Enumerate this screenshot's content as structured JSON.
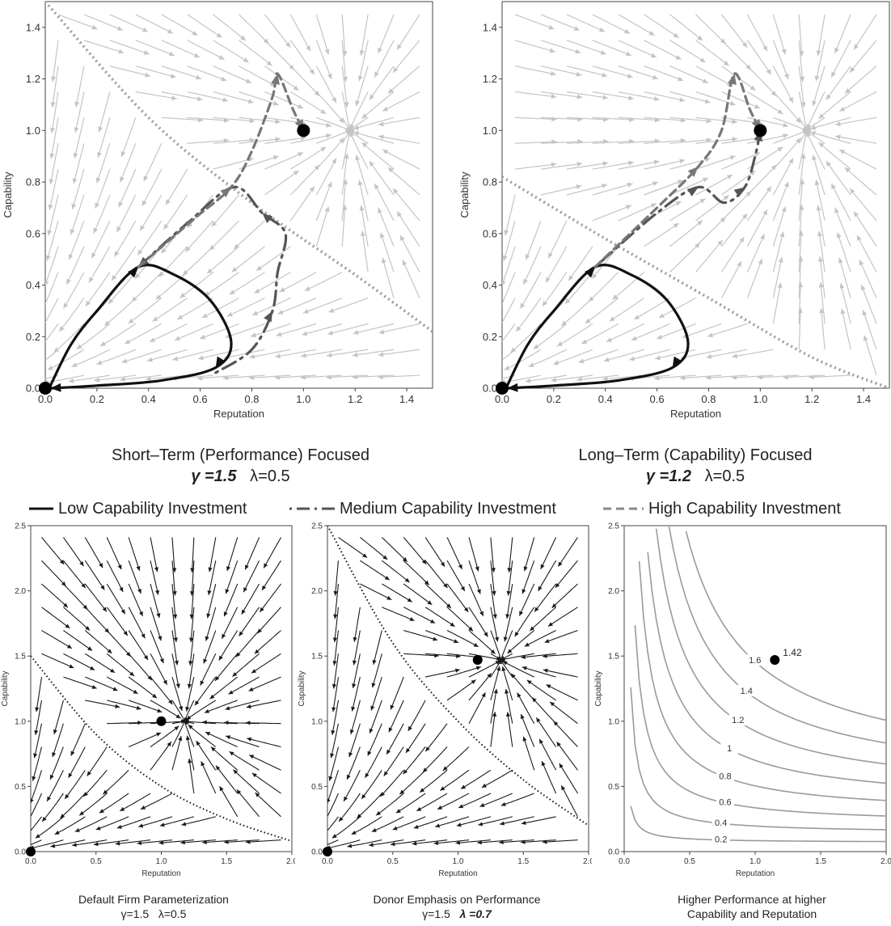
{
  "legend": {
    "low": "Low Capability Investment",
    "medium": "Medium Capability Investment",
    "high": "High Capability Investment"
  },
  "captions": {
    "top_left": {
      "title": "Short–Term (Performance) Focused",
      "gamma": "γ =1.5",
      "lambda": "λ=0.5"
    },
    "top_right": {
      "title": "Long–Term (Capability) Focused",
      "gamma": "γ =1.2",
      "lambda": "λ=0.5"
    },
    "bottom_left": {
      "title": "Default Firm Parameterization",
      "gamma": "γ=1.5",
      "lambda": "λ=0.5"
    },
    "bottom_middle": {
      "title": "Donor Emphasis on Performance",
      "gamma": "γ=1.5",
      "lambda": "λ =0.7"
    },
    "bottom_right": {
      "line1": "Higher Performance at higher",
      "line2": "Capability and Reputation"
    }
  },
  "colors": {
    "stream_light": "#c4c4c4",
    "stream_dark": "#1a1a1a",
    "trajectory": "#111111",
    "dashed": "#777777",
    "contour": "#9a9a9a"
  },
  "chart_data": [
    {
      "id": "top_left",
      "type": "streamplot",
      "xlabel": "Reputation",
      "ylabel": "Capability",
      "xlim": [
        0,
        1.5
      ],
      "ylim": [
        0,
        1.5
      ],
      "xticks": [
        "0.0",
        "0.2",
        "0.4",
        "0.6",
        "0.8",
        "1.0",
        "1.2",
        "1.4"
      ],
      "yticks": [
        "0.0",
        "0.2",
        "0.4",
        "0.6",
        "0.8",
        "1.0",
        "1.2",
        "1.4"
      ],
      "equilibria": [
        [
          0,
          0
        ],
        [
          1,
          1
        ]
      ],
      "separatrix": [
        [
          0,
          1.5
        ],
        [
          0.4,
          1.05
        ],
        [
          0.8,
          0.72
        ],
        [
          1.2,
          0.44
        ],
        [
          1.5,
          0.22
        ]
      ],
      "trajectories": [
        {
          "style": "low",
          "points": [
            [
              0.02,
              0.01
            ],
            [
              0.1,
              0.17
            ],
            [
              0.2,
              0.3
            ],
            [
              0.36,
              0.47
            ],
            [
              0.5,
              0.44
            ],
            [
              0.64,
              0.34
            ],
            [
              0.72,
              0.18
            ],
            [
              0.66,
              0.08
            ],
            [
              0.45,
              0.03
            ],
            [
              0.2,
              0.01
            ],
            [
              0.02,
              0.0
            ]
          ]
        },
        {
          "style": "medium",
          "points": [
            [
              0.66,
              0.06
            ],
            [
              0.8,
              0.15
            ],
            [
              0.88,
              0.3
            ],
            [
              0.9,
              0.45
            ],
            [
              0.93,
              0.6
            ],
            [
              0.84,
              0.68
            ],
            [
              0.73,
              0.78
            ],
            [
              0.55,
              0.64
            ],
            [
              0.36,
              0.47
            ]
          ]
        },
        {
          "style": "high",
          "points": [
            [
              0.36,
              0.47
            ],
            [
              0.58,
              0.66
            ],
            [
              0.72,
              0.78
            ],
            [
              0.8,
              0.92
            ],
            [
              0.88,
              1.13
            ],
            [
              0.9,
              1.22
            ],
            [
              0.96,
              1.08
            ],
            [
              1.0,
              1.0
            ]
          ]
        }
      ]
    },
    {
      "id": "top_right",
      "type": "streamplot",
      "xlabel": "Reputation",
      "ylabel": "Capability",
      "xlim": [
        0,
        1.5
      ],
      "ylim": [
        0,
        1.5
      ],
      "xticks": [
        "0.0",
        "0.2",
        "0.4",
        "0.6",
        "0.8",
        "1.0",
        "1.2",
        "1.4"
      ],
      "yticks": [
        "0.0",
        "0.2",
        "0.4",
        "0.6",
        "0.8",
        "1.0",
        "1.2",
        "1.4"
      ],
      "equilibria": [
        [
          0,
          0
        ],
        [
          1,
          1
        ]
      ],
      "separatrix": [
        [
          0,
          0.82
        ],
        [
          0.4,
          0.58
        ],
        [
          0.8,
          0.35
        ],
        [
          1.2,
          0.12
        ],
        [
          1.5,
          0.0
        ]
      ],
      "trajectories": [
        {
          "style": "low",
          "points": [
            [
              0.02,
              0.01
            ],
            [
              0.1,
              0.17
            ],
            [
              0.2,
              0.3
            ],
            [
              0.36,
              0.47
            ],
            [
              0.5,
              0.44
            ],
            [
              0.64,
              0.34
            ],
            [
              0.72,
              0.18
            ],
            [
              0.66,
              0.08
            ],
            [
              0.45,
              0.03
            ],
            [
              0.2,
              0.01
            ],
            [
              0.02,
              0.0
            ]
          ]
        },
        {
          "style": "medium",
          "points": [
            [
              0.36,
              0.47
            ],
            [
              0.6,
              0.68
            ],
            [
              0.76,
              0.78
            ],
            [
              0.86,
              0.72
            ],
            [
              0.94,
              0.78
            ],
            [
              0.98,
              0.9
            ],
            [
              1.0,
              1.0
            ]
          ]
        },
        {
          "style": "high",
          "points": [
            [
              0.36,
              0.47
            ],
            [
              0.6,
              0.7
            ],
            [
              0.76,
              0.86
            ],
            [
              0.85,
              1.0
            ],
            [
              0.9,
              1.22
            ],
            [
              0.96,
              1.08
            ],
            [
              1.0,
              1.0
            ]
          ]
        }
      ]
    },
    {
      "id": "bottom_left",
      "type": "streamplot",
      "xlabel": "Reputation",
      "ylabel": "Capability",
      "xlim": [
        0,
        2.0
      ],
      "ylim": [
        0,
        2.5
      ],
      "xticks": [
        "0.0",
        "0.5",
        "1.0",
        "1.5",
        "2.0"
      ],
      "yticks": [
        "0.0",
        "0.5",
        "1.0",
        "1.5",
        "2.0",
        "2.5"
      ],
      "equilibria": [
        [
          0,
          0
        ],
        [
          1,
          1
        ]
      ],
      "separatrix": [
        [
          0,
          1.5
        ],
        [
          0.5,
          0.9
        ],
        [
          1.0,
          0.5
        ],
        [
          1.5,
          0.25
        ],
        [
          2.0,
          0.08
        ]
      ]
    },
    {
      "id": "bottom_middle",
      "type": "streamplot",
      "xlabel": "Reputation",
      "ylabel": "Capability",
      "xlim": [
        0,
        2.0
      ],
      "ylim": [
        0,
        2.5
      ],
      "xticks": [
        "0.0",
        "0.5",
        "1.0",
        "1.5",
        "2.0"
      ],
      "yticks": [
        "0.0",
        "0.5",
        "1.0",
        "1.5",
        "2.0",
        "2.5"
      ],
      "equilibria": [
        [
          0,
          0
        ],
        [
          1.15,
          1.47
        ]
      ],
      "separatrix": [
        [
          0,
          2.5
        ],
        [
          0.5,
          1.6
        ],
        [
          1.0,
          1.0
        ],
        [
          1.5,
          0.55
        ],
        [
          2.0,
          0.2
        ]
      ]
    },
    {
      "id": "bottom_right",
      "type": "contour",
      "xlabel": "Reputation",
      "ylabel": "Capability",
      "xlim": [
        0,
        2.0
      ],
      "ylim": [
        0,
        2.5
      ],
      "xticks": [
        "0.0",
        "0.5",
        "1.0",
        "1.5",
        "2.0"
      ],
      "yticks": [
        "0.0",
        "0.5",
        "1.0",
        "1.5",
        "2.0",
        "2.5"
      ],
      "levels": [
        "0.2",
        "0.4",
        "0.6",
        "0.8",
        "1",
        "1.2",
        "1.4",
        "1.6"
      ],
      "point": {
        "x": 1.15,
        "y": 1.47,
        "label": "1.42"
      }
    }
  ]
}
